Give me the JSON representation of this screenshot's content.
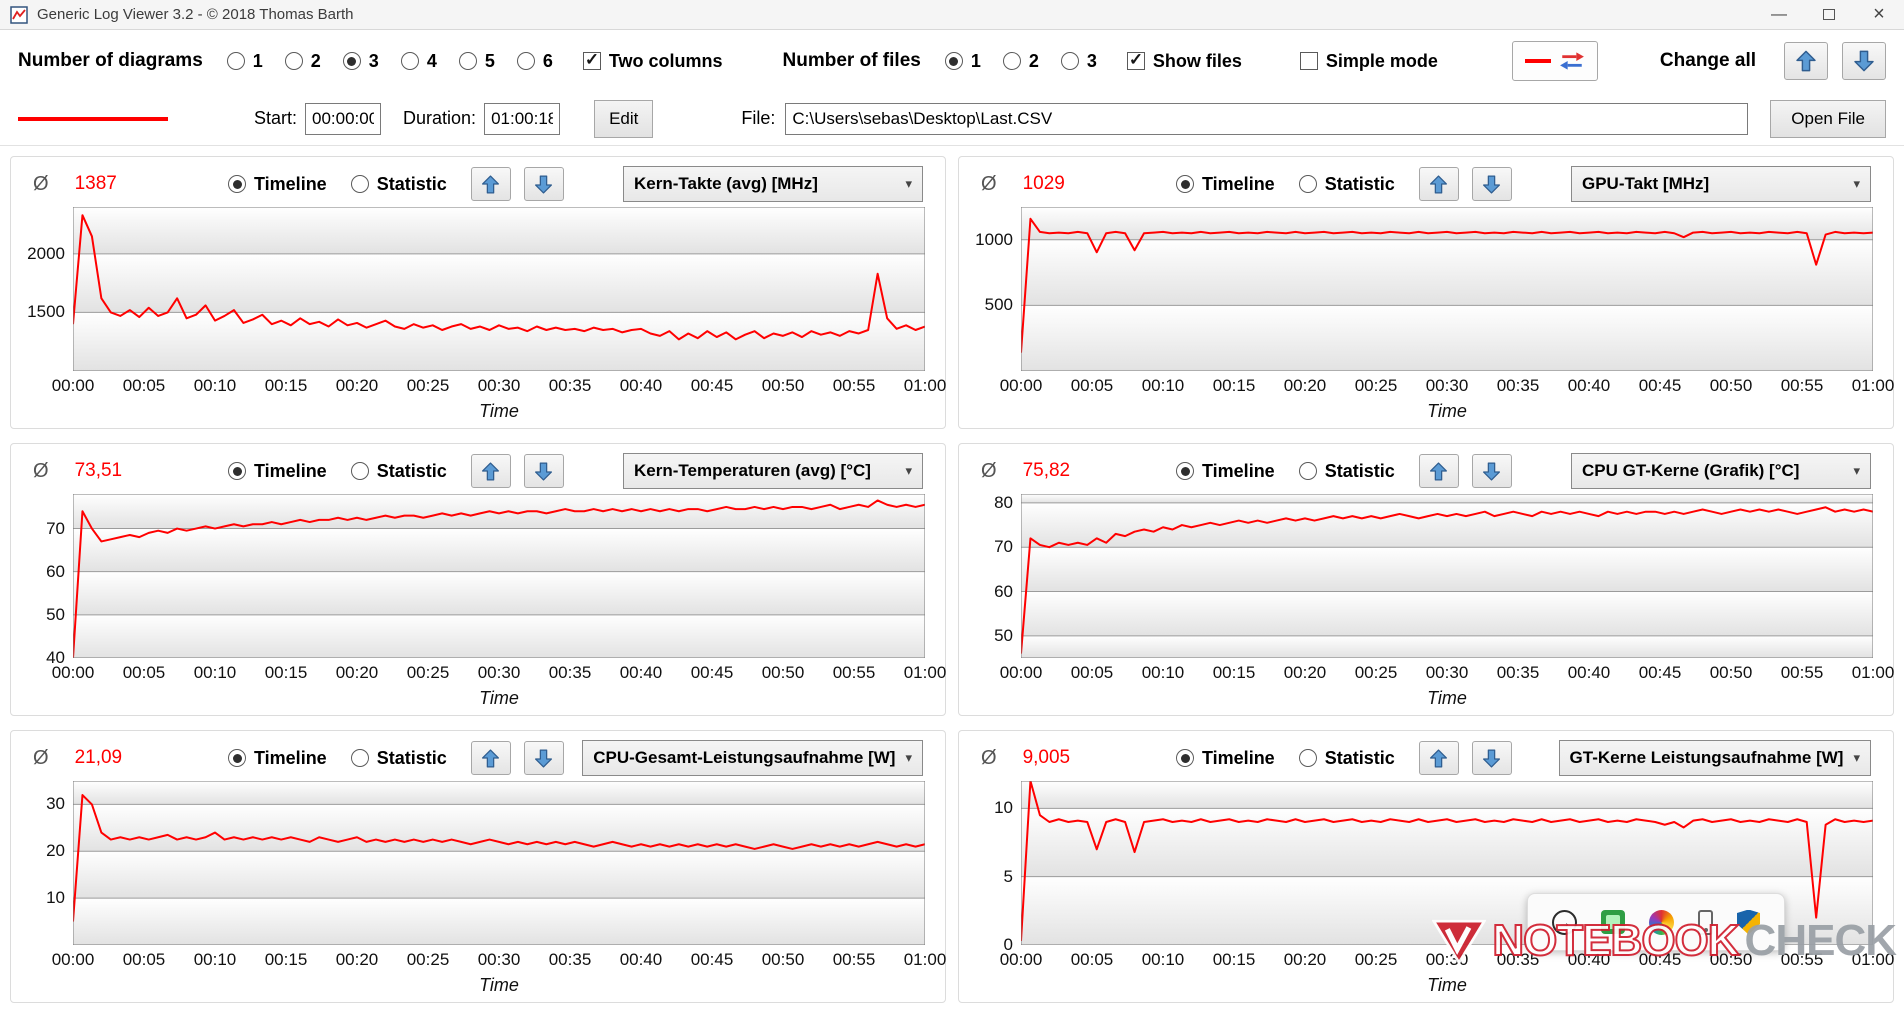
{
  "window": {
    "title": "Generic Log Viewer 3.2 - © 2018 Thomas Barth"
  },
  "icons": {
    "minimize": "—",
    "close": "×",
    "chevron": "▾",
    "tray_arrow": "→"
  },
  "toolbar": {
    "diagrams_label": "Number of diagrams",
    "diagram_options": [
      "1",
      "2",
      "3",
      "4",
      "5",
      "6"
    ],
    "diagrams_selected": "3",
    "two_columns": "Two columns",
    "files_label": "Number of files",
    "file_options": [
      "1",
      "2",
      "3"
    ],
    "files_selected": "1",
    "show_files": "Show files",
    "simple_mode": "Simple mode",
    "change_all": "Change all"
  },
  "file_row": {
    "start_label": "Start:",
    "start_value": "00:00:00",
    "duration_label": "Duration:",
    "duration_value": "01:00:18",
    "edit": "Edit",
    "file_label": "File:",
    "file_path": "C:\\Users\\sebas\\Desktop\\Last.CSV",
    "open_file": "Open File"
  },
  "ui": {
    "avg_symbol": "Ø",
    "timeline": "Timeline",
    "statistic": "Statistic"
  },
  "overlays": {
    "watermark_1": "NOTEBOOK",
    "watermark_2": "CHECK"
  },
  "chart_data": [
    {
      "type": "line",
      "title": "Kern-Takte (avg) [MHz]",
      "avg": "1387",
      "color": "#ff0000",
      "xlabel": "Time",
      "x_ticks": [
        "00:00",
        "00:05",
        "00:10",
        "00:15",
        "00:20",
        "00:25",
        "00:30",
        "00:35",
        "00:40",
        "00:45",
        "00:50",
        "00:55",
        "01:00"
      ],
      "y_ticks": [
        1500,
        2000
      ],
      "ylim": [
        1000,
        2400
      ],
      "values": [
        1400,
        2330,
        2150,
        1620,
        1500,
        1470,
        1520,
        1460,
        1540,
        1470,
        1500,
        1620,
        1450,
        1480,
        1560,
        1430,
        1470,
        1520,
        1410,
        1440,
        1480,
        1400,
        1430,
        1390,
        1450,
        1400,
        1420,
        1380,
        1440,
        1390,
        1410,
        1370,
        1400,
        1430,
        1380,
        1360,
        1400,
        1370,
        1390,
        1350,
        1380,
        1400,
        1360,
        1380,
        1350,
        1390,
        1360,
        1370,
        1340,
        1380,
        1350,
        1370,
        1350,
        1360,
        1340,
        1370,
        1350,
        1360,
        1330,
        1350,
        1360,
        1320,
        1300,
        1340,
        1270,
        1320,
        1280,
        1340,
        1290,
        1330,
        1270,
        1310,
        1340,
        1280,
        1320,
        1300,
        1330,
        1290,
        1340,
        1310,
        1330,
        1300,
        1340,
        1320,
        1350,
        1830,
        1450,
        1360,
        1390,
        1350,
        1380
      ]
    },
    {
      "type": "line",
      "title": "GPU-Takt [MHz]",
      "avg": "1029",
      "color": "#ff0000",
      "xlabel": "Time",
      "x_ticks": [
        "00:00",
        "00:05",
        "00:10",
        "00:15",
        "00:20",
        "00:25",
        "00:30",
        "00:35",
        "00:40",
        "00:45",
        "00:50",
        "00:55",
        "01:00"
      ],
      "y_ticks": [
        500,
        1000
      ],
      "ylim": [
        0,
        1250
      ],
      "values": [
        140,
        1160,
        1060,
        1050,
        1055,
        1050,
        1060,
        1050,
        905,
        1050,
        1060,
        1050,
        920,
        1050,
        1055,
        1060,
        1050,
        1055,
        1050,
        1060,
        1050,
        1055,
        1060,
        1050,
        1055,
        1050,
        1060,
        1055,
        1050,
        1060,
        1050,
        1055,
        1060,
        1050,
        1055,
        1060,
        1050,
        1055,
        1050,
        1060,
        1055,
        1050,
        1060,
        1050,
        1055,
        1060,
        1050,
        1055,
        1060,
        1050,
        1055,
        1050,
        1060,
        1055,
        1050,
        1060,
        1050,
        1055,
        1060,
        1050,
        1055,
        1060,
        1050,
        1055,
        1050,
        1060,
        1055,
        1050,
        1060,
        1050,
        1020,
        1055,
        1060,
        1050,
        1055,
        1060,
        1050,
        1055,
        1050,
        1060,
        1055,
        1050,
        1060,
        1050,
        810,
        1040,
        1060,
        1050,
        1055,
        1050,
        1055
      ]
    },
    {
      "type": "line",
      "title": "Kern-Temperaturen (avg) [°C]",
      "avg": "73,51",
      "color": "#ff0000",
      "xlabel": "Time",
      "x_ticks": [
        "00:00",
        "00:05",
        "00:10",
        "00:15",
        "00:20",
        "00:25",
        "00:30",
        "00:35",
        "00:40",
        "00:45",
        "00:50",
        "00:55",
        "01:00"
      ],
      "y_ticks": [
        40,
        50,
        60,
        70
      ],
      "ylim": [
        40,
        78
      ],
      "values": [
        40,
        74,
        70,
        67,
        67.5,
        68,
        68.5,
        68,
        69,
        69.5,
        69,
        70,
        69.5,
        70,
        70.5,
        70,
        70.5,
        71,
        70.5,
        71,
        71,
        71.5,
        71,
        71.5,
        72,
        71.5,
        72,
        72,
        72.5,
        72,
        72.5,
        72,
        72.5,
        73,
        72.5,
        73,
        73,
        72.5,
        73,
        73.5,
        73,
        73.5,
        73,
        73.5,
        74,
        73.5,
        74,
        73.5,
        74,
        74,
        73.5,
        74,
        74.5,
        74,
        74,
        74.5,
        74,
        74.5,
        74,
        74.5,
        74,
        74.5,
        74,
        74.5,
        74,
        74.5,
        74.5,
        74,
        74.5,
        75,
        74.5,
        74.5,
        75,
        74.5,
        75,
        74.5,
        75,
        75,
        74.5,
        75,
        75.5,
        74.5,
        75,
        75.5,
        75,
        76.5,
        75.5,
        75,
        75.5,
        75,
        75.5
      ]
    },
    {
      "type": "line",
      "title": "CPU GT-Kerne (Grafik) [°C]",
      "avg": "75,82",
      "color": "#ff0000",
      "xlabel": "Time",
      "x_ticks": [
        "00:00",
        "00:05",
        "00:10",
        "00:15",
        "00:20",
        "00:25",
        "00:30",
        "00:35",
        "00:40",
        "00:45",
        "00:50",
        "00:55",
        "01:00"
      ],
      "y_ticks": [
        50,
        60,
        70,
        80
      ],
      "ylim": [
        45,
        82
      ],
      "values": [
        46,
        72,
        70.5,
        70,
        71,
        70.5,
        71,
        70.5,
        72,
        71,
        73,
        72.5,
        73.5,
        74,
        73.5,
        74.5,
        74,
        75,
        74.5,
        75,
        75.5,
        75,
        75.5,
        76,
        75.5,
        76,
        75.5,
        76,
        76.5,
        76,
        76.5,
        76,
        76.5,
        77,
        76.5,
        77,
        76.5,
        77,
        76.5,
        77,
        77.5,
        77,
        76.5,
        77,
        77.5,
        77,
        77.5,
        77,
        77.5,
        78,
        77,
        77.5,
        78,
        77.5,
        77,
        78,
        77.5,
        78,
        77.5,
        78,
        77.5,
        77,
        78,
        77.5,
        78,
        77.5,
        78,
        78,
        77.5,
        78,
        77.5,
        78,
        78.5,
        78,
        77.5,
        78,
        78.5,
        78,
        78.5,
        78,
        78.5,
        78,
        77.5,
        78,
        78.5,
        79,
        78,
        78.5,
        78,
        78.5,
        78
      ]
    },
    {
      "type": "line",
      "title": "CPU-Gesamt-Leistungsaufnahme [W]",
      "avg": "21,09",
      "color": "#ff0000",
      "xlabel": "Time",
      "x_ticks": [
        "00:00",
        "00:05",
        "00:10",
        "00:15",
        "00:20",
        "00:25",
        "00:30",
        "00:35",
        "00:40",
        "00:45",
        "00:50",
        "00:55",
        "01:00"
      ],
      "y_ticks": [
        10,
        20,
        30
      ],
      "ylim": [
        0,
        35
      ],
      "values": [
        5,
        32,
        30,
        24,
        22.5,
        23,
        22.5,
        23,
        22.5,
        23,
        23.5,
        22.5,
        23,
        22.5,
        23,
        24,
        22.5,
        23,
        22.5,
        23,
        22.5,
        23,
        22.5,
        23,
        22.5,
        22,
        23,
        22.5,
        22,
        22.5,
        23,
        22,
        22.5,
        22,
        22.5,
        22,
        22.5,
        22,
        22.5,
        22,
        22.5,
        22,
        21.5,
        22,
        22.5,
        22,
        21.5,
        22,
        21.5,
        22,
        21.5,
        22,
        21.5,
        22,
        21.5,
        21,
        21.5,
        22,
        21.5,
        21,
        21.5,
        21,
        21.5,
        21,
        21.5,
        21,
        21.5,
        21,
        21.5,
        21,
        21.5,
        21,
        20.5,
        21,
        21.5,
        21,
        20.5,
        21,
        21.5,
        21,
        21.5,
        21,
        21.5,
        21,
        21.5,
        22,
        21.5,
        21,
        21.5,
        21,
        21.5
      ]
    },
    {
      "type": "line",
      "title": "GT-Kerne Leistungsaufnahme [W]",
      "avg": "9,005",
      "color": "#ff0000",
      "xlabel": "Time",
      "x_ticks": [
        "00:00",
        "00:05",
        "00:10",
        "00:15",
        "00:20",
        "00:25",
        "00:30",
        "00:35",
        "00:40",
        "00:45",
        "00:50",
        "00:55",
        "01:00"
      ],
      "y_ticks": [
        0,
        5,
        10
      ],
      "ylim": [
        0,
        12
      ],
      "values": [
        0.3,
        12,
        9.5,
        9,
        9.2,
        9,
        9.1,
        9,
        7,
        9,
        9.2,
        9,
        6.8,
        9,
        9.1,
        9.2,
        9,
        9.1,
        9,
        9.2,
        9,
        9.1,
        9.2,
        9,
        9.1,
        9,
        9.2,
        9.1,
        9,
        9.2,
        9,
        9.1,
        9.2,
        9,
        9.1,
        9.2,
        9,
        9.1,
        9,
        9.2,
        9.1,
        9,
        9.2,
        9,
        9.1,
        9.2,
        9,
        9.1,
        9.2,
        9,
        9.1,
        9,
        9.2,
        9.1,
        9,
        9.2,
        9,
        9.1,
        9.2,
        9,
        9.1,
        9.2,
        9,
        9.1,
        9,
        9.2,
        9.1,
        9,
        8.8,
        9,
        8.6,
        9.1,
        9.2,
        9,
        9.1,
        9.2,
        9,
        9.1,
        9,
        9.2,
        9.1,
        9,
        9.2,
        9,
        2,
        8.8,
        9.2,
        9,
        9.1,
        9,
        9.1
      ]
    }
  ]
}
